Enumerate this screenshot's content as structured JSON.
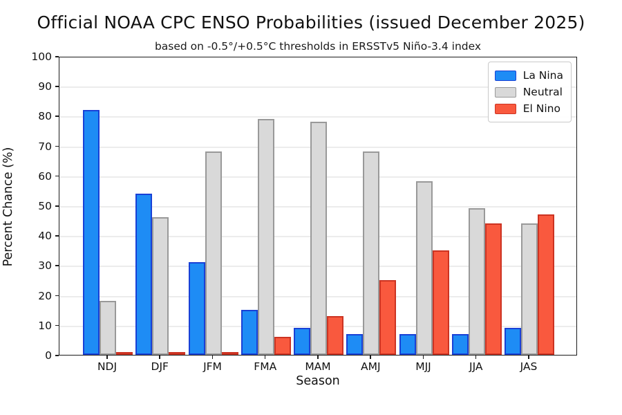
{
  "header": {
    "title": "Official NOAA CPC ENSO Probabilities (issued December 2025)",
    "subtitle": "based on -0.5°/+0.5°C thresholds in ERSSTv5 Niño-3.4 index"
  },
  "chart_data": {
    "type": "bar",
    "title": "Official NOAA CPC ENSO Probabilities (issued December 2025)",
    "subtitle": "based on -0.5°/+0.5°C thresholds in ERSSTv5 Niño-3.4 index",
    "categories": [
      "NDJ",
      "DJF",
      "JFM",
      "FMA",
      "MAM",
      "AMJ",
      "MJJ",
      "JJA",
      "JAS"
    ],
    "series": [
      {
        "name": "La Nina",
        "color": "#1e8cf5",
        "edge_color": "#1940d6",
        "values": [
          82,
          54,
          31,
          15,
          9,
          7,
          7,
          7,
          9
        ]
      },
      {
        "name": "Neutral",
        "color": "#d9d9d9",
        "edge_color": "#999999",
        "values": [
          18,
          46,
          68,
          79,
          78,
          68,
          58,
          49,
          44
        ]
      },
      {
        "name": "El Nino",
        "color": "#f9593e",
        "edge_color": "#cc3322",
        "values": [
          0,
          0,
          1,
          6,
          13,
          25,
          35,
          44,
          47
        ]
      }
    ],
    "xlabel": "Season",
    "ylabel": "Percent Chance (%)",
    "ylim": [
      0,
      100
    ],
    "ytick_step": 10,
    "grid": true,
    "legend_position": "upper right"
  },
  "colors": {
    "grid": "#ececec",
    "spine": "#1a1a1a",
    "background": "#ffffff"
  }
}
